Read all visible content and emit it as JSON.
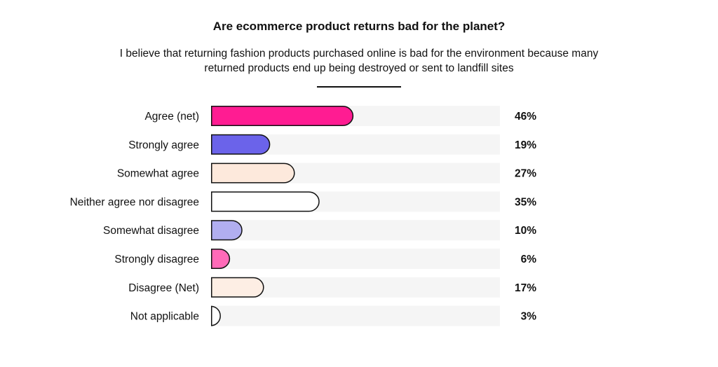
{
  "chart_data": {
    "type": "bar",
    "orientation": "horizontal",
    "title": "Are ecommerce product returns bad for the planet?",
    "subtitle": "I believe that returning fashion products purchased online is bad for the environment because many returned products end up being destroyed or sent to landfill sites",
    "categories": [
      "Agree (net)",
      "Strongly agree",
      "Somewhat agree",
      "Neither agree nor disagree",
      "Somewhat disagree",
      "Strongly disagree",
      "Disagree (Net)",
      "Not applicable"
    ],
    "values": [
      46,
      19,
      27,
      35,
      10,
      6,
      17,
      3
    ],
    "value_labels": [
      "46%",
      "19%",
      "27%",
      "35%",
      "10%",
      "6%",
      "17%",
      "3%"
    ],
    "bar_colors": [
      "#ff1c92",
      "#6b63ea",
      "#fde9dc",
      "#ffffff",
      "#b1aef0",
      "#ff6ab8",
      "#fdeee4",
      "#ffffff"
    ],
    "track_color": "#f5f5f5",
    "xlim": [
      0,
      100
    ],
    "grid": false,
    "legend": "none"
  }
}
